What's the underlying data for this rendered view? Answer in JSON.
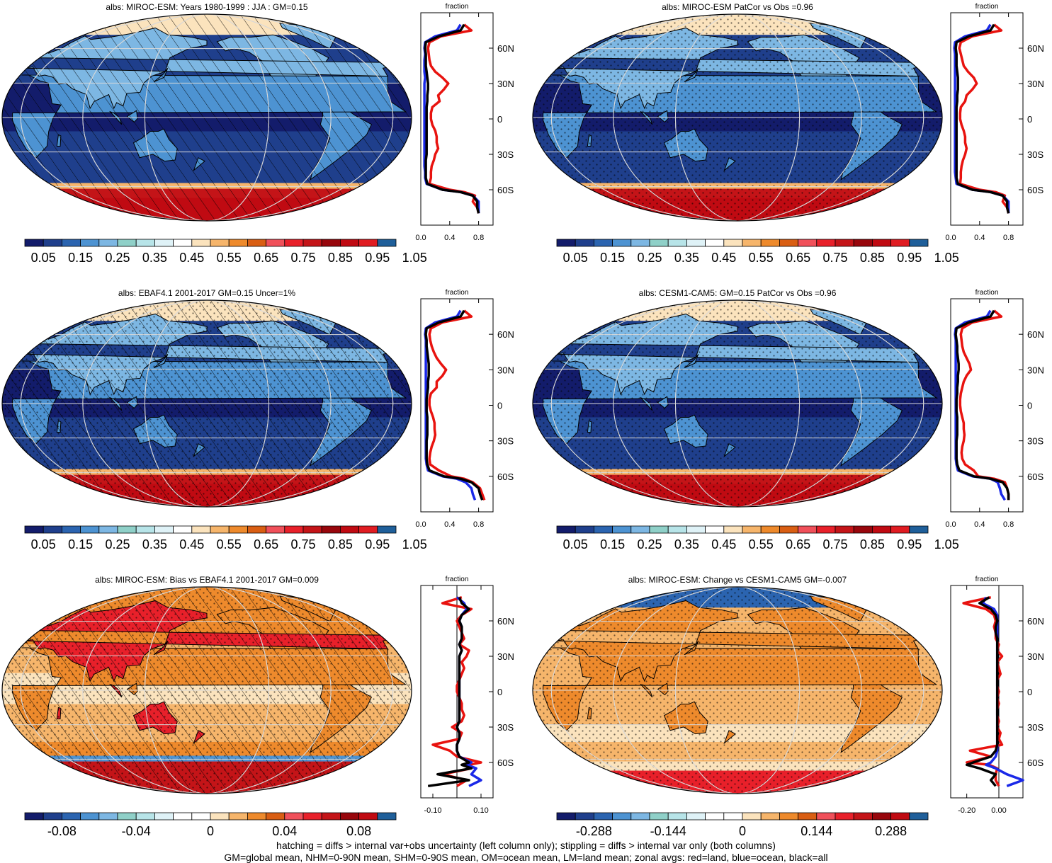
{
  "palettes": {
    "abs": [
      "#131c6b",
      "#1f3f8c",
      "#2b64b0",
      "#4d93d2",
      "#7db7e3",
      "#8fd0c8",
      "#b7e4e8",
      "#dff2f7",
      "#ffffff",
      "#fbe3bd",
      "#f6b56b",
      "#ee8a2c",
      "#d95e13",
      "#f0505a",
      "#e8202a",
      "#c41418",
      "#98060c",
      "#c00a12",
      "#e01c22",
      "#1f5f9a"
    ],
    "diff": [
      "#131c6b",
      "#1f3f8c",
      "#2b64b0",
      "#4d93d2",
      "#7db7e3",
      "#8fd0c8",
      "#b7e4e8",
      "#dff2f7",
      "#ffffff",
      "#ffffff",
      "#fbe3bd",
      "#f6b56b",
      "#ee8a2c",
      "#d95e13",
      "#f0505a",
      "#e8202a",
      "#c41418",
      "#98060c",
      "#c00a12",
      "#1f5f9a"
    ]
  },
  "profile_colors": {
    "land": "#e8130f",
    "ocean": "#1a28e8",
    "all": "#000000"
  },
  "panels": [
    {
      "id": "p1",
      "title": "albs: MIROC-ESM: Years 1980-1999 : JJA : GM=0.15",
      "map_style": "abs",
      "hatch": true,
      "stipple": false,
      "colorbar": {
        "palette": "abs",
        "labels": [
          "0.05",
          "0.15",
          "0.25",
          "0.35",
          "0.45",
          "0.55",
          "0.65",
          "0.75",
          "0.85",
          "0.95",
          "1.05"
        ]
      },
      "profile": {
        "xlabel": "fraction",
        "xticks": [
          "0.0",
          "0.4",
          "0.8"
        ],
        "xvalues": [
          0,
          0.4,
          0.8
        ],
        "xlim": [
          0,
          1.0
        ],
        "ylabels": [
          "60N",
          "30N",
          "0",
          "30S",
          "60S"
        ],
        "lat": [
          80,
          75,
          70,
          65,
          60,
          55,
          50,
          45,
          40,
          35,
          30,
          25,
          20,
          15,
          10,
          5,
          0,
          -5,
          -10,
          -15,
          -20,
          -25,
          -30,
          -35,
          -40,
          -45,
          -50,
          -55,
          -60,
          -62,
          -65,
          -70,
          -75,
          -80
        ],
        "land": [
          0.6,
          0.7,
          0.28,
          0.12,
          0.1,
          0.11,
          0.12,
          0.14,
          0.2,
          0.3,
          0.38,
          0.32,
          0.24,
          0.26,
          0.16,
          0.14,
          0.14,
          0.16,
          0.2,
          0.22,
          0.22,
          0.24,
          0.2,
          0.18,
          0.15,
          0.14,
          0.14,
          0.12,
          0.4,
          0.6,
          0.75,
          0.72,
          0.78,
          0.8
        ],
        "ocean": [
          0.55,
          0.5,
          0.2,
          0.06,
          0.05,
          0.06,
          0.05,
          0.05,
          0.05,
          0.06,
          0.05,
          0.05,
          0.05,
          0.05,
          0.05,
          0.05,
          0.05,
          0.05,
          0.05,
          0.05,
          0.05,
          0.05,
          0.05,
          0.05,
          0.05,
          0.06,
          0.06,
          0.08,
          0.3,
          0.55,
          0.72,
          0.8,
          0.8,
          0.8
        ],
        "all": [
          0.6,
          0.55,
          0.25,
          0.07,
          0.06,
          0.07,
          0.07,
          0.07,
          0.08,
          0.09,
          0.1,
          0.1,
          0.09,
          0.09,
          0.08,
          0.08,
          0.08,
          0.08,
          0.08,
          0.08,
          0.08,
          0.08,
          0.08,
          0.07,
          0.07,
          0.07,
          0.07,
          0.09,
          0.3,
          0.55,
          0.72,
          0.78,
          0.78,
          0.8
        ]
      }
    },
    {
      "id": "p2",
      "title": "albs: MIROC-ESM PatCor vs Obs =0.96",
      "map_style": "abs",
      "hatch": false,
      "stipple": true,
      "colorbar": {
        "palette": "abs",
        "labels": [
          "0.05",
          "0.15",
          "0.25",
          "0.35",
          "0.45",
          "0.55",
          "0.65",
          "0.75",
          "0.85",
          "0.95",
          "1.05"
        ]
      },
      "profile": {
        "xlabel": "fraction",
        "xticks": [
          "0.0",
          "0.4",
          "0.8"
        ],
        "xvalues": [
          0,
          0.4,
          0.8
        ],
        "xlim": [
          0,
          1.0
        ],
        "ylabels": [
          "60N",
          "30N",
          "0",
          "30S",
          "60S"
        ],
        "lat": [
          80,
          75,
          70,
          65,
          60,
          55,
          50,
          45,
          40,
          35,
          30,
          25,
          20,
          15,
          10,
          5,
          0,
          -5,
          -10,
          -15,
          -20,
          -25,
          -30,
          -35,
          -40,
          -45,
          -50,
          -55,
          -60,
          -62,
          -65,
          -70,
          -75,
          -80
        ],
        "land": [
          0.6,
          0.7,
          0.3,
          0.14,
          0.12,
          0.14,
          0.16,
          0.18,
          0.24,
          0.32,
          0.36,
          0.3,
          0.22,
          0.2,
          0.14,
          0.13,
          0.13,
          0.15,
          0.18,
          0.2,
          0.2,
          0.22,
          0.2,
          0.17,
          0.15,
          0.14,
          0.14,
          0.13,
          0.4,
          0.62,
          0.75,
          0.72,
          0.78,
          0.8
        ],
        "ocean": [
          0.55,
          0.5,
          0.2,
          0.06,
          0.05,
          0.06,
          0.06,
          0.06,
          0.06,
          0.06,
          0.06,
          0.06,
          0.06,
          0.06,
          0.06,
          0.06,
          0.06,
          0.06,
          0.06,
          0.06,
          0.06,
          0.06,
          0.06,
          0.06,
          0.06,
          0.06,
          0.07,
          0.08,
          0.3,
          0.55,
          0.72,
          0.8,
          0.8,
          0.8
        ],
        "all": [
          0.6,
          0.55,
          0.25,
          0.08,
          0.07,
          0.08,
          0.08,
          0.08,
          0.09,
          0.1,
          0.1,
          0.1,
          0.09,
          0.09,
          0.08,
          0.08,
          0.08,
          0.08,
          0.08,
          0.08,
          0.08,
          0.08,
          0.08,
          0.08,
          0.08,
          0.08,
          0.08,
          0.1,
          0.3,
          0.55,
          0.72,
          0.78,
          0.78,
          0.8
        ]
      }
    },
    {
      "id": "p3",
      "title": "albs: EBAF4.1 2001-2017 GM=0.15 Uncer=1%",
      "map_style": "abs",
      "hatch": true,
      "stipple": true,
      "colorbar": {
        "palette": "abs",
        "labels": [
          "0.05",
          "0.15",
          "0.25",
          "0.35",
          "0.45",
          "0.55",
          "0.65",
          "0.75",
          "0.85",
          "0.95",
          "1.05"
        ]
      },
      "profile": {
        "xlabel": "fraction",
        "xticks": [
          "0.0",
          "0.4",
          "0.8"
        ],
        "xvalues": [
          0,
          0.4,
          0.8
        ],
        "xlim": [
          0,
          1.0
        ],
        "ylabels": [
          "60N",
          "30N",
          "0",
          "30S",
          "60S"
        ],
        "lat": [
          80,
          75,
          70,
          65,
          60,
          55,
          50,
          45,
          40,
          35,
          30,
          25,
          20,
          15,
          10,
          5,
          0,
          -5,
          -10,
          -15,
          -20,
          -25,
          -30,
          -35,
          -40,
          -45,
          -50,
          -55,
          -60,
          -62,
          -65,
          -70,
          -75,
          -80
        ],
        "land": [
          0.6,
          0.7,
          0.3,
          0.14,
          0.12,
          0.13,
          0.15,
          0.18,
          0.22,
          0.28,
          0.35,
          0.3,
          0.22,
          0.22,
          0.14,
          0.12,
          0.12,
          0.14,
          0.17,
          0.19,
          0.19,
          0.2,
          0.18,
          0.15,
          0.13,
          0.12,
          0.13,
          0.25,
          0.42,
          0.6,
          0.72,
          0.82,
          0.85,
          0.88
        ],
        "ocean": [
          0.55,
          0.5,
          0.2,
          0.07,
          0.06,
          0.07,
          0.07,
          0.07,
          0.07,
          0.07,
          0.07,
          0.07,
          0.07,
          0.07,
          0.07,
          0.07,
          0.07,
          0.07,
          0.07,
          0.07,
          0.07,
          0.07,
          0.07,
          0.07,
          0.07,
          0.07,
          0.08,
          0.1,
          0.3,
          0.5,
          0.62,
          0.7,
          0.72,
          0.75
        ],
        "all": [
          0.6,
          0.55,
          0.25,
          0.08,
          0.07,
          0.08,
          0.08,
          0.09,
          0.1,
          0.11,
          0.11,
          0.11,
          0.1,
          0.1,
          0.09,
          0.08,
          0.08,
          0.08,
          0.09,
          0.09,
          0.09,
          0.09,
          0.08,
          0.08,
          0.08,
          0.08,
          0.09,
          0.12,
          0.32,
          0.55,
          0.7,
          0.8,
          0.82,
          0.85
        ]
      }
    },
    {
      "id": "p4",
      "title": "albs: CESM1-CAM5: GM=0.15 PatCor vs Obs =0.96",
      "map_style": "abs",
      "hatch": false,
      "stipple": true,
      "colorbar": {
        "palette": "abs",
        "labels": [
          "0.05",
          "0.15",
          "0.25",
          "0.35",
          "0.45",
          "0.55",
          "0.65",
          "0.75",
          "0.85",
          "0.95",
          "1.05"
        ]
      },
      "profile": {
        "xlabel": "fraction",
        "xticks": [
          "0.0",
          "0.4",
          "0.8"
        ],
        "xvalues": [
          0,
          0.4,
          0.8
        ],
        "xlim": [
          0,
          1.0
        ],
        "ylabels": [
          "60N",
          "30N",
          "0",
          "30S",
          "60S"
        ],
        "lat": [
          80,
          75,
          70,
          65,
          60,
          55,
          50,
          45,
          40,
          35,
          30,
          25,
          20,
          15,
          10,
          5,
          0,
          -5,
          -10,
          -15,
          -20,
          -25,
          -30,
          -35,
          -40,
          -45,
          -50,
          -55,
          -60,
          -62,
          -65,
          -70,
          -75,
          -80
        ],
        "land": [
          0.6,
          0.7,
          0.3,
          0.16,
          0.14,
          0.15,
          0.16,
          0.18,
          0.22,
          0.26,
          0.28,
          0.22,
          0.18,
          0.16,
          0.14,
          0.13,
          0.13,
          0.14,
          0.16,
          0.18,
          0.18,
          0.19,
          0.18,
          0.16,
          0.15,
          0.16,
          0.2,
          0.32,
          0.38,
          0.6,
          0.75,
          0.78,
          0.8,
          0.8
        ],
        "ocean": [
          0.55,
          0.5,
          0.2,
          0.07,
          0.06,
          0.07,
          0.07,
          0.07,
          0.07,
          0.07,
          0.07,
          0.07,
          0.07,
          0.07,
          0.07,
          0.07,
          0.07,
          0.07,
          0.07,
          0.07,
          0.07,
          0.07,
          0.07,
          0.07,
          0.07,
          0.07,
          0.08,
          0.1,
          0.3,
          0.55,
          0.65,
          0.68,
          0.7,
          0.75
        ],
        "all": [
          0.6,
          0.55,
          0.25,
          0.08,
          0.07,
          0.08,
          0.09,
          0.09,
          0.1,
          0.11,
          0.11,
          0.1,
          0.1,
          0.09,
          0.09,
          0.08,
          0.08,
          0.08,
          0.09,
          0.09,
          0.09,
          0.09,
          0.08,
          0.08,
          0.08,
          0.08,
          0.09,
          0.12,
          0.32,
          0.55,
          0.72,
          0.78,
          0.8,
          0.8
        ]
      }
    },
    {
      "id": "p5",
      "title": "albs: MIROC-ESM: Bias vs EBAF4.1 2001-2017 GM=0.009",
      "map_style": "bias",
      "hatch": true,
      "stipple": true,
      "colorbar": {
        "palette": "diff",
        "labels": [
          "-0.08",
          "-0.04",
          "0",
          "0.04",
          "0.08"
        ]
      },
      "profile": {
        "xlabel": "fraction",
        "xticks": [
          "-0.10",
          "0.10"
        ],
        "xvalues": [
          -0.1,
          0.1
        ],
        "xlim": [
          -0.15,
          0.15
        ],
        "ylabels": [
          "60N",
          "30N",
          "0",
          "30S",
          "60S"
        ],
        "lat": [
          80,
          75,
          70,
          65,
          60,
          55,
          50,
          45,
          40,
          35,
          30,
          25,
          20,
          15,
          10,
          5,
          0,
          -5,
          -10,
          -15,
          -20,
          -25,
          -30,
          -35,
          -40,
          -45,
          -50,
          -55,
          -60,
          -62,
          -65,
          -70,
          -75,
          -80
        ],
        "land": [
          0.02,
          -0.06,
          0.06,
          0.02,
          0.0,
          0.01,
          0.02,
          0.03,
          0.01,
          0.05,
          0.04,
          0.02,
          0.03,
          0.02,
          0.01,
          0.0,
          0.0,
          0.01,
          0.02,
          0.02,
          0.03,
          0.02,
          -0.02,
          0.02,
          0.01,
          -0.1,
          -0.03,
          0.0,
          0.1,
          0.05,
          0.06,
          -0.06,
          0.04,
          0.0
        ],
        "ocean": [
          0.0,
          0.03,
          0.04,
          0.02,
          0.01,
          0.02,
          0.02,
          0.02,
          0.01,
          0.02,
          0.01,
          0.01,
          0.01,
          0.01,
          0.01,
          0.01,
          0.01,
          0.01,
          0.01,
          0.01,
          0.01,
          0.01,
          0.0,
          0.01,
          0.01,
          0.0,
          0.0,
          0.01,
          0.06,
          0.04,
          0.08,
          0.06,
          0.1,
          0.05
        ],
        "all": [
          0.01,
          0.02,
          0.05,
          0.02,
          0.01,
          0.02,
          0.02,
          0.02,
          0.01,
          0.02,
          0.01,
          0.01,
          0.01,
          0.01,
          0.01,
          0.01,
          0.01,
          0.01,
          0.01,
          0.01,
          0.01,
          0.01,
          0.0,
          0.01,
          0.01,
          0.0,
          0.0,
          0.01,
          0.05,
          0.02,
          0.06,
          -0.08,
          0.05,
          -0.12
        ]
      }
    },
    {
      "id": "p6",
      "title": "albs: MIROC-ESM: Change vs CESM1-CAM5 GM=-0.007",
      "map_style": "change",
      "hatch": false,
      "stipple": true,
      "colorbar": {
        "palette": "diff",
        "labels": [
          "-0.288",
          "-0.144",
          "0",
          "0.144",
          "0.288"
        ]
      },
      "profile": {
        "xlabel": "fraction",
        "xticks": [
          "-0.20",
          "0.00"
        ],
        "xvalues": [
          -0.2,
          0.0
        ],
        "xlim": [
          -0.3,
          0.15
        ],
        "ylabels": [
          "60N",
          "30N",
          "0",
          "30S",
          "60S"
        ],
        "lat": [
          80,
          75,
          70,
          65,
          60,
          55,
          50,
          45,
          40,
          35,
          30,
          25,
          20,
          15,
          10,
          5,
          0,
          -5,
          -10,
          -15,
          -20,
          -25,
          -30,
          -35,
          -40,
          -45,
          -50,
          -55,
          -60,
          -62,
          -65,
          -70,
          -75,
          -80
        ],
        "land": [
          -0.05,
          -0.22,
          -0.08,
          -0.03,
          -0.02,
          -0.03,
          -0.02,
          -0.02,
          0.0,
          -0.01,
          0.02,
          -0.01,
          0.0,
          0.01,
          -0.01,
          -0.01,
          0.0,
          -0.01,
          0.0,
          -0.01,
          -0.01,
          0.0,
          -0.01,
          0.01,
          0.0,
          0.02,
          -0.18,
          -0.05,
          -0.2,
          -0.06,
          -0.01,
          -0.02,
          -0.02,
          0.0
        ],
        "ocean": [
          -0.08,
          -0.1,
          -0.03,
          -0.01,
          -0.01,
          -0.01,
          -0.01,
          -0.01,
          -0.01,
          -0.01,
          -0.01,
          -0.01,
          -0.01,
          -0.01,
          -0.01,
          -0.01,
          -0.01,
          -0.01,
          -0.01,
          -0.01,
          -0.01,
          -0.01,
          -0.01,
          -0.01,
          -0.01,
          -0.01,
          -0.01,
          -0.02,
          -0.05,
          -0.08,
          -0.02,
          0.05,
          0.15,
          0.05
        ],
        "all": [
          -0.06,
          -0.12,
          -0.05,
          -0.02,
          -0.01,
          -0.02,
          -0.02,
          -0.01,
          -0.01,
          -0.01,
          -0.01,
          -0.01,
          -0.01,
          -0.01,
          -0.01,
          -0.01,
          -0.01,
          -0.01,
          -0.01,
          -0.01,
          -0.01,
          -0.01,
          -0.01,
          -0.01,
          -0.01,
          -0.01,
          -0.02,
          -0.05,
          -0.16,
          -0.2,
          -0.12,
          -0.02,
          -0.05,
          -0.02
        ]
      }
    }
  ],
  "footer": {
    "line1": "hatching = diffs > internal var+obs uncertainty (left column only); stippling = diffs > internal var only (both columns)",
    "line2": "GM=global mean, NHM=0-90N mean, SHM=0-90S mean, OM=ocean mean, LM=land mean; zonal avgs: red=land, blue=ocean, black=all"
  }
}
